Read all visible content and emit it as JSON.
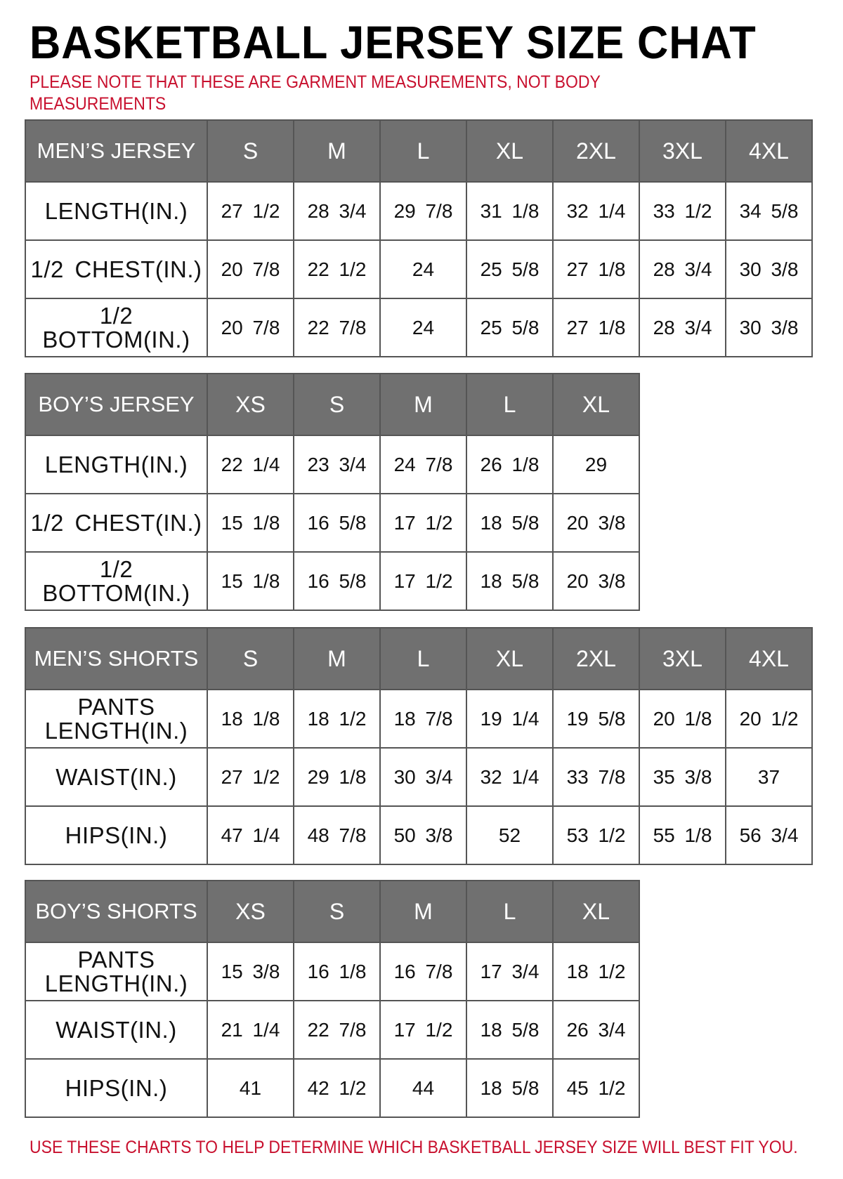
{
  "title": "BASKETBALL JERSEY SIZE CHAT",
  "note": "PLEASE NOTE THAT THESE ARE GARMENT MEASUREMENTS, NOT BODY MEASUREMENTS",
  "footer": "USE THESE CHARTS TO HELP DETERMINE WHICH BASKETBALL JERSEY SIZE WILL BEST FIT YOU.",
  "colors": {
    "header_bg": "#707070",
    "note_text": "#c8102e"
  },
  "tables": [
    {
      "name": "mens-jersey",
      "header": [
        "MEN’S JERSEY",
        "S",
        "M",
        "L",
        "XL",
        "2XL",
        "3XL",
        "4XL"
      ],
      "rows": [
        [
          "LENGTH(IN.)",
          "27 1/2",
          "28 3/4",
          "29 7/8",
          "31 1/8",
          "32 1/4",
          "33 1/2",
          "34 5/8"
        ],
        [
          "1/2 CHEST(IN.)",
          "20 7/8",
          "22 1/2",
          "24",
          "25 5/8",
          "27 1/8",
          "28 3/4",
          "30 3/8"
        ],
        [
          "1/2 BOTTOM(IN.)",
          "20 7/8",
          "22 7/8",
          "24",
          "25 5/8",
          "27 1/8",
          "28 3/4",
          "30 3/8"
        ]
      ]
    },
    {
      "name": "boys-jersey",
      "header": [
        "BOY’S JERSEY",
        "XS",
        "S",
        "M",
        "L",
        "XL"
      ],
      "rows": [
        [
          "LENGTH(IN.)",
          "22 1/4",
          "23 3/4",
          "24 7/8",
          "26 1/8",
          "29"
        ],
        [
          "1/2 CHEST(IN.)",
          "15 1/8",
          "16 5/8",
          "17 1/2",
          "18 5/8",
          "20 3/8"
        ],
        [
          "1/2 BOTTOM(IN.)",
          "15 1/8",
          "16 5/8",
          "17 1/2",
          "18 5/8",
          "20 3/8"
        ]
      ]
    },
    {
      "name": "mens-shorts",
      "header": [
        "MEN’S SHORTS",
        "S",
        "M",
        "L",
        "XL",
        "2XL",
        "3XL",
        "4XL"
      ],
      "rows": [
        [
          "PANTS LENGTH(IN.)",
          "18 1/8",
          "18 1/2",
          "18 7/8",
          "19 1/4",
          "19 5/8",
          "20 1/8",
          "20 1/2"
        ],
        [
          "WAIST(IN.)",
          "27 1/2",
          "29 1/8",
          "30 3/4",
          "32 1/4",
          "33 7/8",
          "35 3/8",
          "37"
        ],
        [
          "HIPS(IN.)",
          "47 1/4",
          "48 7/8",
          "50 3/8",
          "52",
          "53 1/2",
          "55 1/8",
          "56 3/4"
        ]
      ]
    },
    {
      "name": "boys-shorts",
      "header": [
        "BOY’S SHORTS",
        "XS",
        "S",
        "M",
        "L",
        "XL"
      ],
      "rows": [
        [
          "PANTS LENGTH(IN.)",
          "15 3/8",
          "16 1/8",
          "16 7/8",
          "17 3/4",
          "18 1/2"
        ],
        [
          "WAIST(IN.)",
          "21 1/4",
          "22 7/8",
          "17 1/2",
          "18 5/8",
          "26 3/4"
        ],
        [
          "HIPS(IN.)",
          "41",
          "42 1/2",
          "44",
          "18 5/8",
          "45 1/2"
        ]
      ]
    }
  ]
}
